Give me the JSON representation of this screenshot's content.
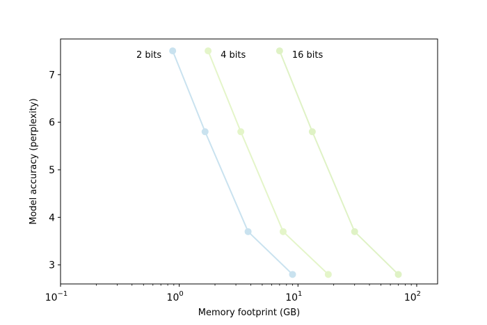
{
  "chart_data": {
    "type": "line",
    "xlabel": "Memory footprint (GB)",
    "ylabel": "Model accuracy (perplexity)",
    "xscale": "log",
    "xlim": [
      0.1,
      150
    ],
    "ylim": [
      2.6,
      7.75
    ],
    "grid": false,
    "x_ticks": [
      {
        "value": 0.1,
        "base": "10",
        "exp": "−1"
      },
      {
        "value": 1,
        "base": "10",
        "exp": "0"
      },
      {
        "value": 10,
        "base": "10",
        "exp": "1"
      },
      {
        "value": 100,
        "base": "10",
        "exp": "2"
      }
    ],
    "y_ticks": [
      3,
      4,
      5,
      6,
      7
    ],
    "series": [
      {
        "name": "2 bits",
        "color": "#c9e2ef",
        "x": [
          0.88,
          1.65,
          3.8,
          9.0
        ],
        "y": [
          7.5,
          5.8,
          3.7,
          2.8
        ]
      },
      {
        "name": "4 bits",
        "color": "#e4f5c9",
        "x": [
          1.75,
          3.3,
          7.5,
          18.0
        ],
        "y": [
          7.5,
          5.8,
          3.7,
          2.8
        ]
      },
      {
        "name": "16 bits",
        "color": "#dff2c5",
        "x": [
          7.0,
          13.2,
          30.0,
          70.0
        ],
        "y": [
          7.5,
          5.8,
          3.7,
          2.8
        ]
      }
    ]
  }
}
